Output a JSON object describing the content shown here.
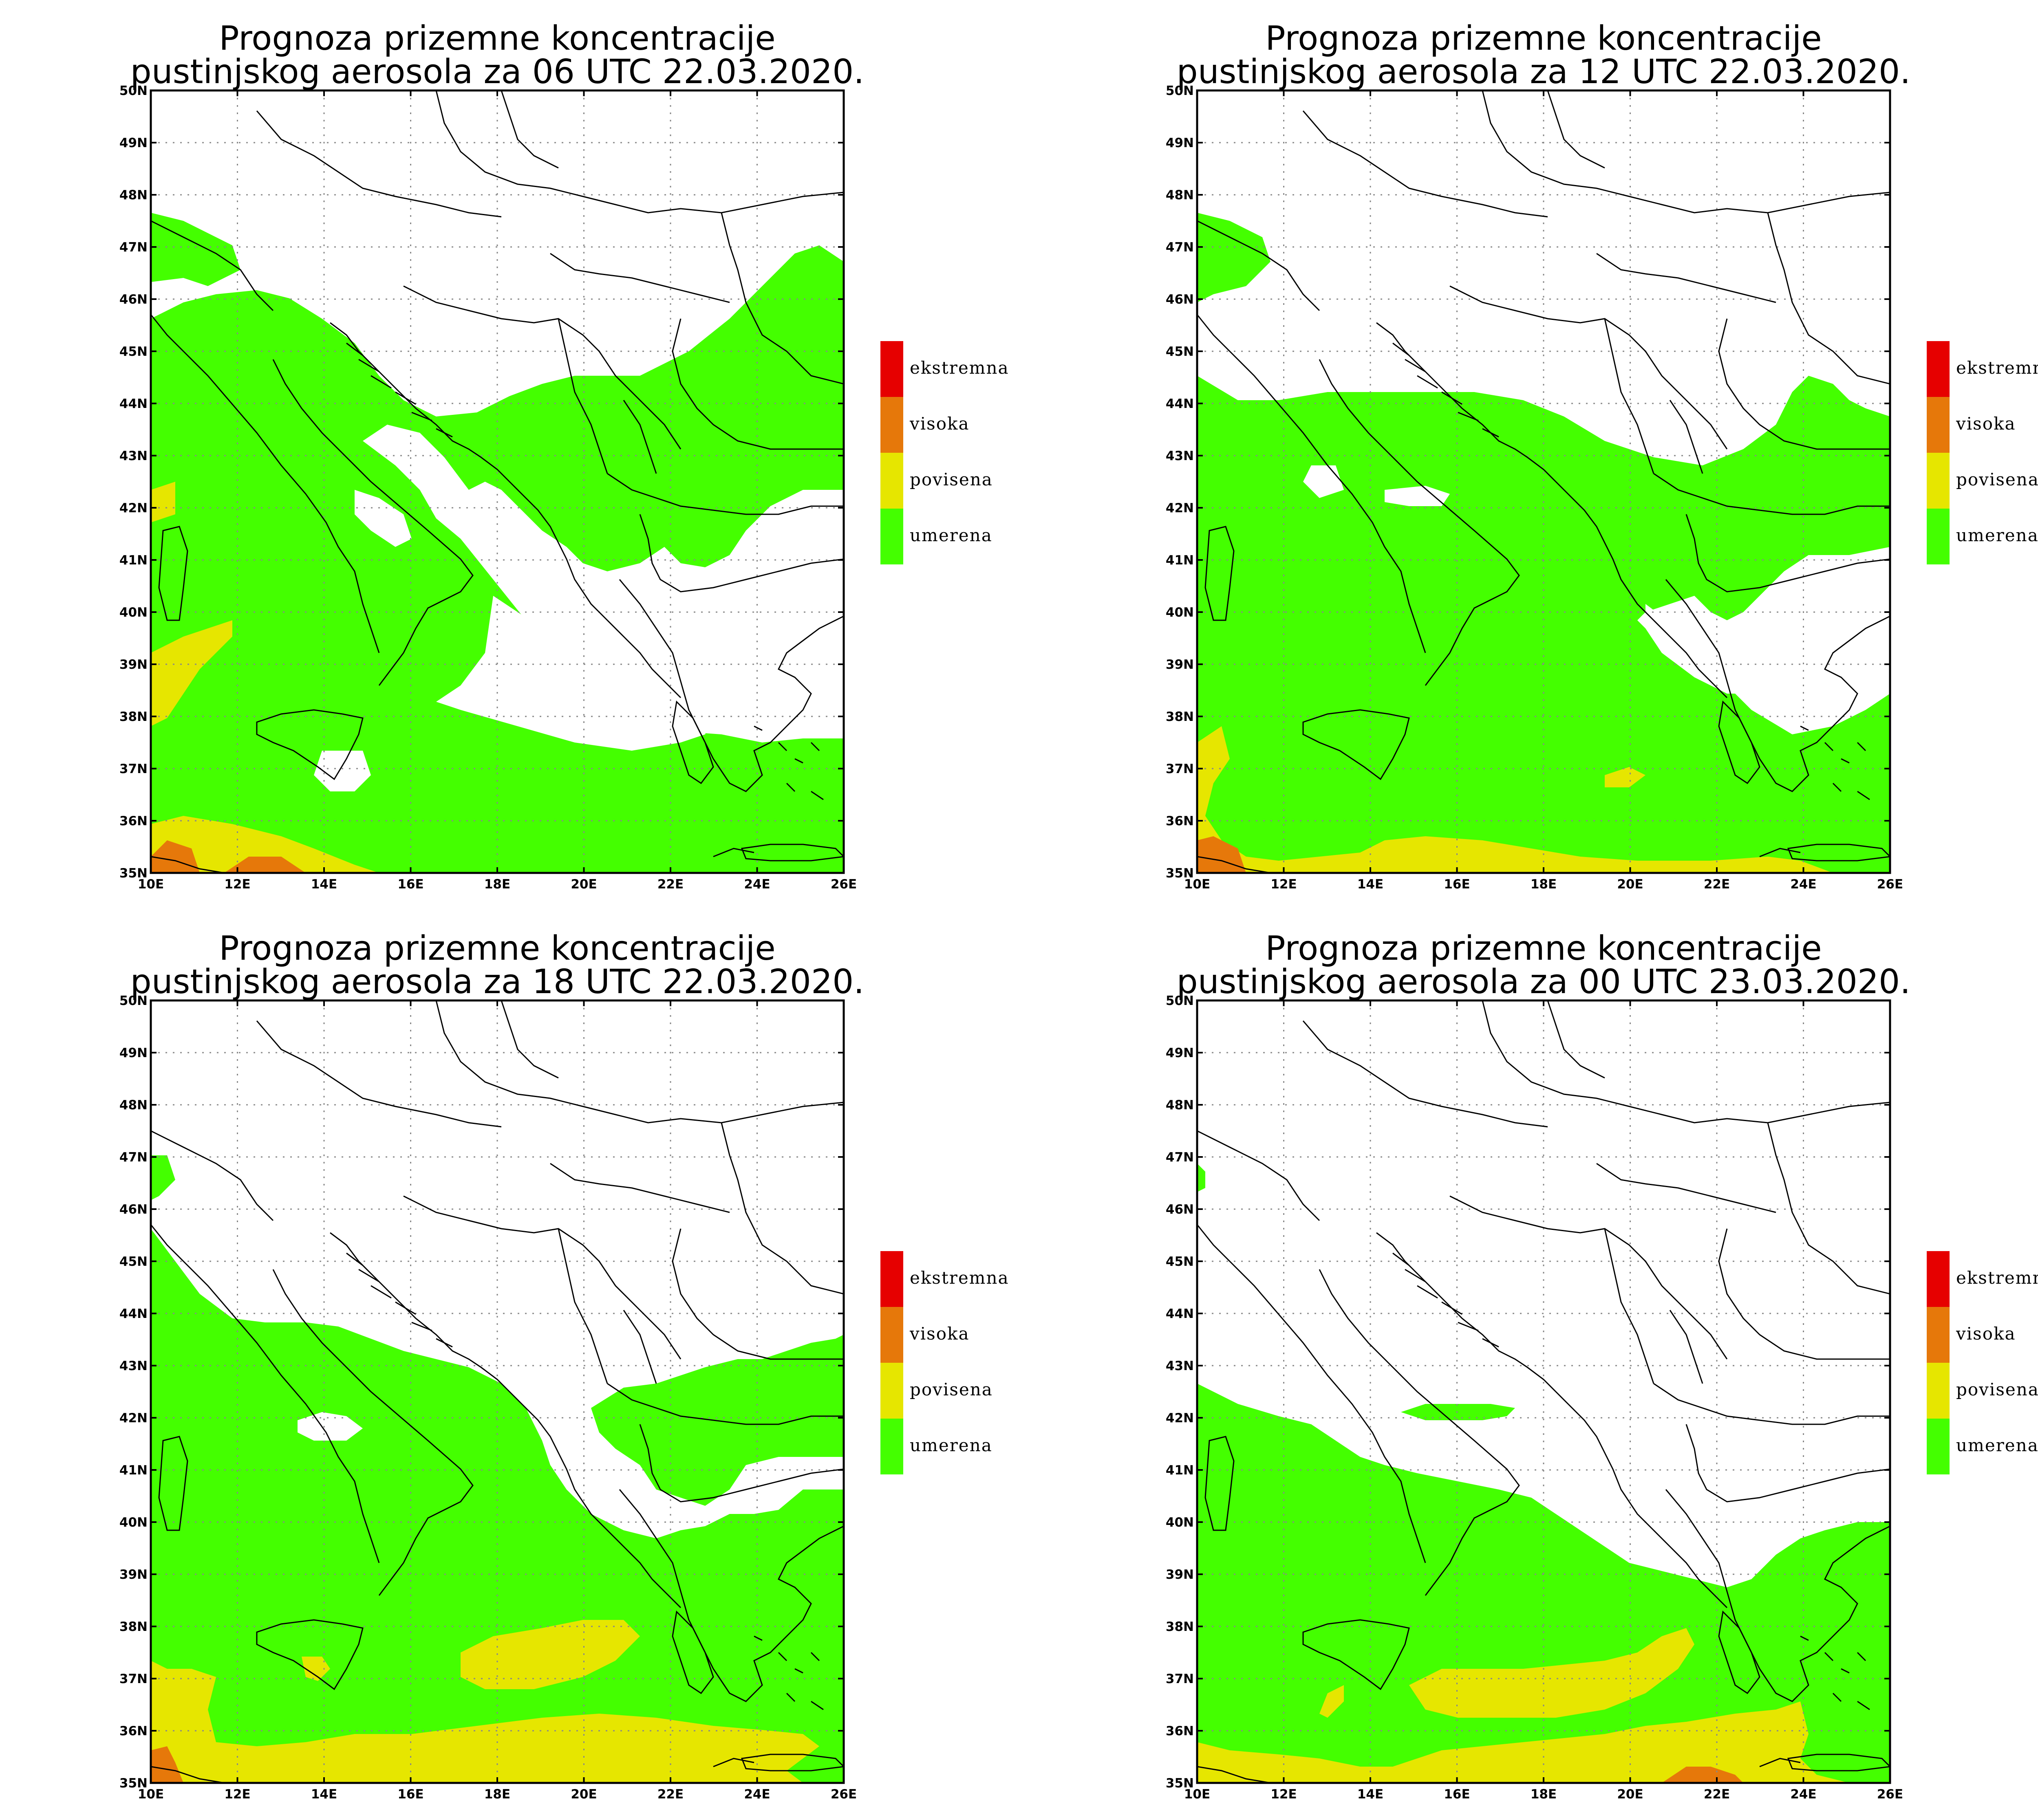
{
  "colors": {
    "umerena": "#44ff00",
    "povisena": "#e6e600",
    "visoka": "#e6780a",
    "ekstremna": "#e60000",
    "border": "#000000",
    "grid": "#888888"
  },
  "legend": [
    {
      "label": "ekstremna",
      "color_key": "ekstremna"
    },
    {
      "label": "visoka",
      "color_key": "visoka"
    },
    {
      "label": "povisena",
      "color_key": "povisena"
    },
    {
      "label": "umerena",
      "color_key": "umerena"
    }
  ],
  "axes": {
    "lat_labels": [
      "50N",
      "49N",
      "48N",
      "47N",
      "46N",
      "45N",
      "44N",
      "43N",
      "42N",
      "41N",
      "40N",
      "39N",
      "38N",
      "37N",
      "36N",
      "35N"
    ],
    "lon_labels": [
      "10E",
      "12E",
      "14E",
      "16E",
      "18E",
      "20E",
      "22E",
      "24E",
      "26E"
    ],
    "lon_range": [
      10,
      26
    ],
    "lat_range": [
      35,
      50
    ]
  },
  "panels": [
    {
      "title_line1": "Prognoza prizemne koncentracije",
      "title_line2": "pustinjskog aerosola za 06 UTC 22.03.2020."
    },
    {
      "title_line1": "Prognoza prizemne koncentracije",
      "title_line2": "pustinjskog aerosola za 12 UTC 22.03.2020."
    },
    {
      "title_line1": "Prognoza prizemne koncentracije",
      "title_line2": "pustinjskog aerosola za 18 UTC 22.03.2020."
    },
    {
      "title_line1": "Prognoza prizemne koncentracije",
      "title_line2": "pustinjskog aerosola za 00 UTC 23.03.2020."
    }
  ]
}
